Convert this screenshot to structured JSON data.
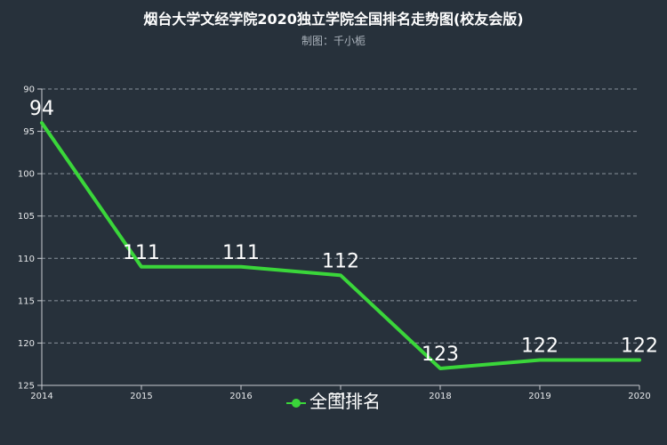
{
  "chart_data": {
    "type": "line",
    "title": "烟台大学文经学院2020独立学院全国排名走势图(校友会版)",
    "subtitle": "制图：千小栀",
    "x": [
      "2014",
      "2015",
      "2016",
      "2017",
      "2018",
      "2019",
      "2020"
    ],
    "series": [
      {
        "name": "全国排名",
        "values": [
          94,
          111,
          111,
          112,
          123,
          122,
          122
        ],
        "color": "#3ad63a"
      }
    ],
    "y_ticks": [
      "90",
      "95",
      "100",
      "105",
      "110",
      "115",
      "120",
      "125"
    ],
    "ylim": [
      90,
      125
    ],
    "y_inverted": true,
    "grid": "horizontal-dashed",
    "legend": "bottom-center",
    "data_labels": true
  }
}
